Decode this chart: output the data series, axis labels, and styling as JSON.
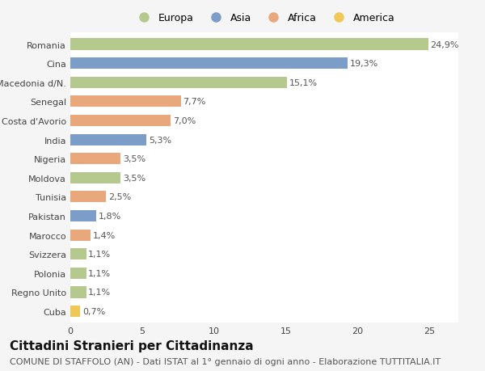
{
  "countries": [
    "Romania",
    "Cina",
    "Macedonia d/N.",
    "Senegal",
    "Costa d'Avorio",
    "India",
    "Nigeria",
    "Moldova",
    "Tunisia",
    "Pakistan",
    "Marocco",
    "Svizzera",
    "Polonia",
    "Regno Unito",
    "Cuba"
  ],
  "values": [
    24.9,
    19.3,
    15.1,
    7.7,
    7.0,
    5.3,
    3.5,
    3.5,
    2.5,
    1.8,
    1.4,
    1.1,
    1.1,
    1.1,
    0.7
  ],
  "labels": [
    "24,9%",
    "19,3%",
    "15,1%",
    "7,7%",
    "7,0%",
    "5,3%",
    "3,5%",
    "3,5%",
    "2,5%",
    "1,8%",
    "1,4%",
    "1,1%",
    "1,1%",
    "1,1%",
    "0,7%"
  ],
  "continents": [
    "Europa",
    "Asia",
    "Europa",
    "Africa",
    "Africa",
    "Asia",
    "Africa",
    "Europa",
    "Africa",
    "Asia",
    "Africa",
    "Europa",
    "Europa",
    "Europa",
    "America"
  ],
  "continent_colors": {
    "Europa": "#b5c98e",
    "Asia": "#7b9dc7",
    "Africa": "#e8a87c",
    "America": "#f0c857"
  },
  "legend_order": [
    "Europa",
    "Asia",
    "Africa",
    "America"
  ],
  "xlim": [
    0,
    27
  ],
  "xticks": [
    0,
    5,
    10,
    15,
    20,
    25
  ],
  "background_color": "#f5f5f5",
  "plot_bg_color": "#ffffff",
  "title": "Cittadini Stranieri per Cittadinanza",
  "subtitle": "COMUNE DI STAFFOLO (AN) - Dati ISTAT al 1° gennaio di ogni anno - Elaborazione TUTTITALIA.IT",
  "title_fontsize": 11,
  "subtitle_fontsize": 8,
  "bar_height": 0.6,
  "label_fontsize": 8,
  "tick_fontsize": 8,
  "legend_fontsize": 9
}
